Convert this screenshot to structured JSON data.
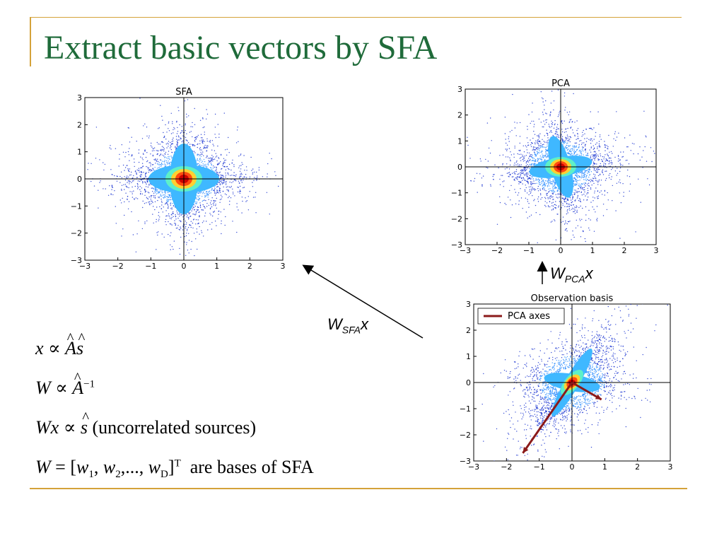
{
  "slide": {
    "title": "Extract basic vectors by SFA"
  },
  "labels": {
    "wpca": {
      "base": "W",
      "sub": "PCA",
      "tail": "x"
    },
    "wsfa": {
      "base": "W",
      "sub": "SFA",
      "tail": "x"
    }
  },
  "equations": {
    "eq1": {
      "lhs": "x",
      "op": "∝",
      "A": "A",
      "s": "s"
    },
    "eq2": {
      "lhs": "W",
      "op": "∝",
      "A": "A",
      "exp": "−1"
    },
    "eq3": {
      "lhs": "Wx",
      "op": "∝",
      "s": "s",
      "note": "(uncorrelated sources)"
    },
    "eq4": {
      "lhs": "W",
      "op": "=",
      "open": "[",
      "w": "w",
      "sub1": "1",
      "sub2": "2",
      "subD": "D",
      "mid": ",",
      "dots": ",...,",
      "close": "]",
      "exp": "T",
      "tail": "are bases of SFA"
    }
  },
  "chart_data": [
    {
      "type": "scatter",
      "title": "SFA",
      "xlim": [
        -3,
        3
      ],
      "ylim": [
        -3,
        3
      ],
      "xticks": [
        "−3",
        "−2",
        "−1",
        "0",
        "1",
        "2",
        "3"
      ],
      "yticks": [
        "3",
        "2",
        "1",
        "0",
        "−1",
        "−2",
        "−3"
      ],
      "distribution": "sparse cross aligned with x and y axes, dense core at origin",
      "axes_lines": true
    },
    {
      "type": "scatter",
      "title": "PCA",
      "xlim": [
        -3,
        3
      ],
      "ylim": [
        -3,
        3
      ],
      "xticks": [
        "−3",
        "−2",
        "−1",
        "0",
        "1",
        "2",
        "3"
      ],
      "yticks": [
        "3",
        "2",
        "1",
        "0",
        "−1",
        "−2",
        "−3"
      ],
      "distribution": "rotated cross with arms tilted, dense core at origin",
      "axes_lines": true
    },
    {
      "type": "scatter",
      "title": "Observation basis",
      "xlim": [
        -3,
        3
      ],
      "ylim": [
        -3,
        3
      ],
      "xticks": [
        "−3",
        "−2",
        "−1",
        "0",
        "1",
        "2",
        "3"
      ],
      "yticks": [
        "3",
        "2",
        "1",
        "0",
        "−1",
        "−2",
        "−3"
      ],
      "legend": {
        "label": "PCA axes",
        "placement": "top-left",
        "color": "#8b1a1a"
      },
      "pca_axes": [
        {
          "from": [
            0,
            0
          ],
          "to": [
            -1.5,
            -2.7
          ]
        },
        {
          "from": [
            0,
            0
          ],
          "to": [
            0.9,
            -0.65
          ]
        }
      ],
      "distribution": "elongated diagonal band plus shallow cross, dense core at origin",
      "axes_lines": true
    }
  ]
}
